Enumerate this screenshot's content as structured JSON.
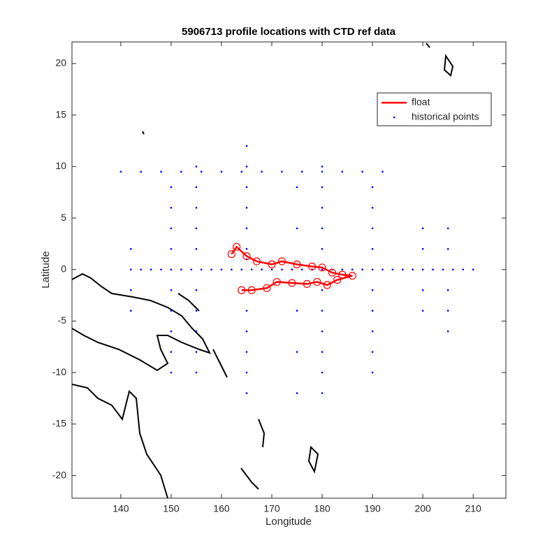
{
  "chart_data": {
    "type": "scatter",
    "title": "5906713 profile locations with CTD ref data",
    "x_label": "Longitude",
    "y_label": "Latitude",
    "xlim": [
      130.3,
      216.5
    ],
    "ylim": [
      -22.2,
      22.1
    ],
    "xticks": [
      140,
      150,
      160,
      170,
      180,
      190,
      200,
      210
    ],
    "yticks": [
      -20,
      -15,
      -10,
      -5,
      0,
      5,
      10,
      15,
      20
    ],
    "legend": "upper right",
    "series": [
      {
        "name": "float",
        "color": "#ff0000",
        "style": "line",
        "x": [
          162,
          163,
          165,
          167,
          170,
          172,
          175,
          178,
          180,
          182,
          184,
          186,
          183,
          181,
          179,
          177,
          174,
          171,
          169,
          166,
          164
        ],
        "y": [
          1.5,
          2.2,
          1.3,
          0.8,
          0.5,
          0.8,
          0.5,
          0.3,
          0.2,
          -0.3,
          -0.5,
          -0.6,
          -1,
          -1.5,
          -1.2,
          -1.4,
          -1.3,
          -1.2,
          -1.8,
          -2,
          -2
        ]
      },
      {
        "name": "historical points",
        "color": "#0000ff",
        "style": "points",
        "x": [
          142,
          144,
          146,
          148,
          150,
          152,
          154,
          156,
          158,
          160,
          162,
          164,
          166,
          168,
          170,
          172,
          174,
          176,
          178,
          180,
          182,
          184,
          186,
          188,
          190,
          192,
          194,
          196,
          198,
          200,
          202,
          204,
          206,
          208,
          210,
          165,
          165,
          165,
          165,
          165,
          165,
          165,
          165,
          165,
          165,
          165,
          165,
          165,
          180,
          180,
          180,
          180,
          180,
          180,
          180,
          180,
          180,
          180,
          180,
          190,
          190,
          190,
          190,
          190,
          190,
          190,
          190,
          190,
          140,
          144,
          148,
          152,
          156,
          160,
          164,
          168,
          172,
          176,
          180,
          184,
          188,
          192,
          155,
          155,
          155,
          155,
          155,
          155,
          155,
          155,
          155,
          155,
          150,
          150,
          150,
          150,
          150,
          150,
          150,
          150,
          150,
          142,
          142,
          142,
          200,
          200,
          200,
          200,
          205,
          205,
          205,
          205,
          205,
          175,
          175,
          175,
          175,
          175
        ],
        "y": [
          0,
          0,
          0,
          0,
          0,
          0,
          0,
          0,
          0,
          0,
          0,
          0,
          0,
          0,
          0,
          0,
          0,
          0,
          0,
          0,
          0,
          0,
          0,
          0,
          0,
          0,
          0,
          0,
          0,
          0,
          0,
          0,
          0,
          0,
          0,
          -12,
          -10,
          -8,
          -6,
          -4,
          -2,
          1,
          2,
          4,
          6,
          8,
          10,
          12,
          -12,
          -10,
          -8,
          -6,
          -4,
          -2,
          2,
          4,
          6,
          8,
          10,
          -10,
          -8,
          -6,
          -4,
          -2,
          2,
          4,
          6,
          8,
          9.5,
          9.5,
          9.5,
          9.5,
          9.5,
          9.5,
          9.5,
          9.5,
          9.5,
          9.5,
          9.5,
          9.5,
          9.5,
          9.5,
          -10,
          -8,
          -6,
          -4,
          -2,
          2,
          4,
          6,
          8,
          10,
          -10,
          -8,
          -6,
          -4,
          -2,
          2,
          4,
          6,
          8,
          -4,
          -2,
          2,
          -4,
          -2,
          2,
          4,
          -6,
          -4,
          -2,
          2,
          4,
          -12,
          -8,
          -4,
          4,
          8
        ]
      }
    ]
  }
}
